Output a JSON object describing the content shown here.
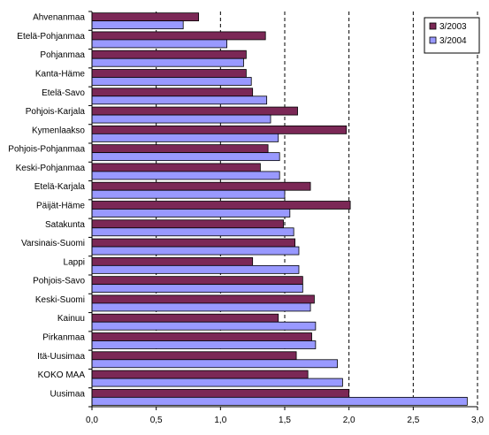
{
  "chart_data": {
    "type": "bar",
    "orientation": "horizontal",
    "categories": [
      "Ahvenanmaa",
      "Etelä-Pohjanmaa",
      "Pohjanmaa",
      "Kanta-Häme",
      "Etelä-Savo",
      "Pohjois-Karjala",
      "Kymenlaakso",
      "Pohjois-Pohjanmaa",
      "Keski-Pohjanmaa",
      "Etelä-Karjala",
      "Päijät-Häme",
      "Satakunta",
      "Varsinais-Suomi",
      "Lappi",
      "Pohjois-Savo",
      "Keski-Suomi",
      "Kainuu",
      "Pirkanmaa",
      "Itä-Uusimaa",
      "KOKO MAA",
      "Uusimaa"
    ],
    "series": [
      {
        "name": "3/2003",
        "color": "#7b2856",
        "values": [
          0.83,
          1.35,
          1.2,
          1.2,
          1.25,
          1.6,
          1.98,
          1.37,
          1.31,
          1.7,
          2.01,
          1.49,
          1.58,
          1.25,
          1.64,
          1.73,
          1.45,
          1.71,
          1.59,
          1.68,
          2.0
        ]
      },
      {
        "name": "3/2004",
        "color": "#9999ff",
        "values": [
          0.71,
          1.05,
          1.18,
          1.24,
          1.36,
          1.39,
          1.45,
          1.46,
          1.46,
          1.5,
          1.54,
          1.57,
          1.61,
          1.61,
          1.64,
          1.7,
          1.74,
          1.74,
          1.91,
          1.95,
          2.92
        ]
      }
    ],
    "xlim": [
      0,
      3.0
    ],
    "xticks": [
      "0,0",
      "0,5",
      "1,0",
      "1,5",
      "2,0",
      "2,5",
      "3,0"
    ],
    "xtick_values": [
      0,
      0.5,
      1.0,
      1.5,
      2.0,
      2.5,
      3.0
    ],
    "grid": "vertical dashed lines at 1,0 / 1,5 / 2,0 / 2,5",
    "legend_position": "top-right"
  }
}
